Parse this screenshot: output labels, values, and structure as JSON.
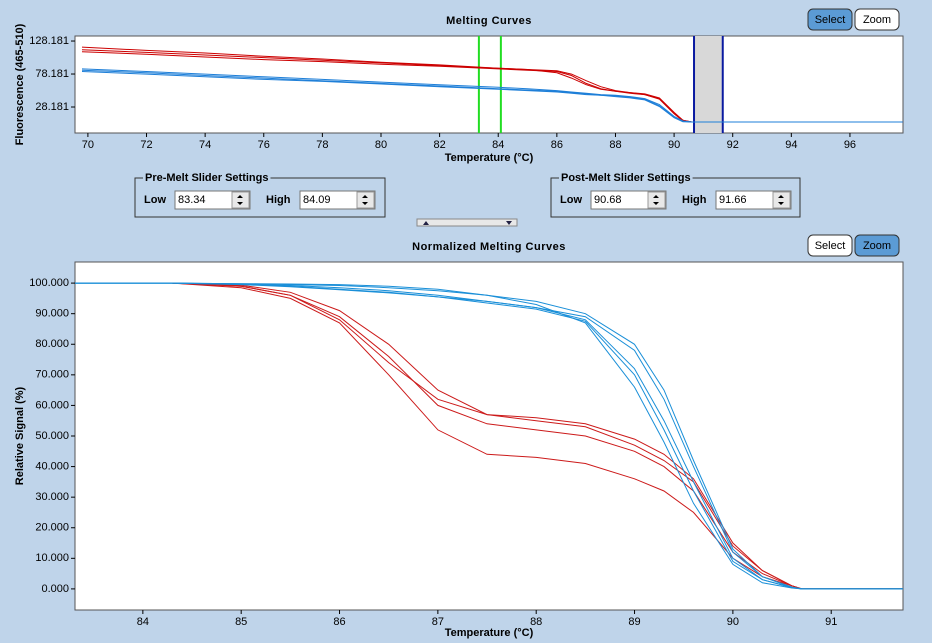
{
  "chart_data": [
    {
      "type": "line",
      "title": "Melting Curves",
      "ylabel": "Fluorescence (465-510)",
      "xlabel": "Temperature (°C)",
      "x": [
        69.8,
        72,
        74,
        76,
        78,
        80,
        82,
        84,
        85,
        86,
        86.5,
        87,
        87.5,
        88,
        88.5,
        89,
        89.5,
        90,
        90.3,
        90.6,
        92,
        94,
        96,
        97.8
      ],
      "series": [
        {
          "color": "#cc0000",
          "values": [
            119,
            114,
            110,
            105,
            101,
            96,
            92,
            87,
            85,
            80,
            72,
            62,
            55,
            52,
            50,
            48,
            42,
            20,
            8,
            5.5,
            5.5,
            5.5,
            5.5,
            5.5
          ]
        },
        {
          "color": "#cc0000",
          "values": [
            115,
            111,
            107,
            103,
            99,
            95,
            91,
            87,
            85,
            83,
            78,
            68,
            59,
            53,
            50,
            47,
            40,
            18,
            7,
            5.5,
            5.5,
            5.5,
            5.5,
            5.5
          ]
        },
        {
          "color": "#cc0000",
          "values": [
            112,
            108,
            104,
            100,
            97,
            93,
            90,
            86,
            84,
            82,
            76,
            64,
            56,
            52,
            49,
            47,
            41,
            19,
            8,
            5.5,
            5.5,
            5.5,
            5.5,
            5.5
          ]
        },
        {
          "color": "#1e7fd8",
          "values": [
            86,
            82,
            78,
            74,
            70,
            66,
            62,
            58,
            56,
            53,
            51,
            49,
            47,
            46,
            44,
            41,
            32,
            14,
            7,
            5.5,
            5.5,
            5.5,
            5.5,
            5.5
          ]
        },
        {
          "color": "#1e7fd8",
          "values": [
            84,
            80,
            76,
            72,
            68,
            64,
            60,
            56,
            54,
            52,
            50,
            48,
            46,
            45,
            43,
            40,
            30,
            13,
            6.5,
            5.5,
            5.5,
            5.5,
            5.5,
            5.5
          ]
        },
        {
          "color": "#1e7fd8",
          "values": [
            82,
            78,
            74,
            70,
            67,
            63,
            59,
            55,
            53,
            51,
            49,
            47,
            46,
            44,
            42,
            39,
            29,
            12,
            6,
            5.5,
            5.5,
            5.5,
            5.5,
            5.5
          ]
        }
      ],
      "xlim": [
        69.56,
        97.81
      ],
      "xticks": [
        70,
        72,
        74,
        76,
        78,
        80,
        82,
        84,
        86,
        88,
        90,
        92,
        94,
        96
      ],
      "ylim": [
        -11.2,
        135.8
      ],
      "yticks": [
        28.181,
        78.181,
        128.181
      ],
      "buttons": [
        "Select",
        "Zoom"
      ],
      "active_button": 0
    },
    {
      "type": "line",
      "title": "Normalized Melting Curves",
      "ylabel": "Relative Signal (%)",
      "xlabel": "Temperature (°C)",
      "x": [
        83.31,
        84,
        84.3,
        85,
        85.5,
        86,
        86.5,
        87,
        87.5,
        88,
        88.5,
        89,
        89.3,
        89.6,
        90,
        90.3,
        90.6,
        90.7,
        91.73
      ],
      "series": [
        {
          "color": "#cc1a1a",
          "values": [
            null,
            null,
            100,
            99,
            96,
            88,
            74,
            62,
            57,
            55,
            53,
            47,
            42,
            35,
            14,
            6,
            1,
            0,
            0
          ]
        },
        {
          "color": "#cc1a1a",
          "values": [
            null,
            null,
            100,
            98.5,
            95,
            87,
            70,
            52,
            44,
            43,
            41,
            36,
            32,
            25,
            10,
            4,
            1,
            0,
            0
          ]
        },
        {
          "color": "#cc1a1a",
          "values": [
            null,
            null,
            100,
            99,
            96,
            89,
            76,
            60,
            54,
            52,
            50,
            45,
            40,
            32,
            12,
            5,
            1,
            0,
            0
          ]
        },
        {
          "color": "#cc1a1a",
          "values": [
            null,
            null,
            100,
            99.3,
            97,
            91,
            80,
            65,
            57,
            56,
            54,
            49,
            44,
            36,
            15,
            6,
            1,
            0,
            0
          ]
        },
        {
          "color": "#1a8fd8",
          "values": [
            100,
            100,
            100,
            99.7,
            99.2,
            98.5,
            97.5,
            96,
            94,
            92,
            88,
            72,
            55,
            35,
            10,
            3,
            0.5,
            0,
            0
          ]
        },
        {
          "color": "#1a8fd8",
          "values": [
            100,
            100,
            100,
            99.8,
            99.7,
            99.5,
            99,
            98,
            96,
            93,
            87,
            66,
            48,
            28,
            8,
            2,
            0.3,
            0,
            0
          ]
        },
        {
          "color": "#1a8fd8",
          "values": [
            100,
            100,
            100,
            99.6,
            99,
            98,
            97,
            95.5,
            94,
            92,
            89,
            78,
            62,
            40,
            12,
            4,
            0.5,
            0,
            0
          ]
        },
        {
          "color": "#1a8fd8",
          "values": [
            100,
            100,
            100,
            99.8,
            99.5,
            99.2,
            98.5,
            97.5,
            96,
            94,
            90,
            80,
            65,
            42,
            13,
            4,
            0.6,
            0,
            0
          ]
        },
        {
          "color": "#1a8fd8",
          "values": [
            100,
            100,
            100,
            99.5,
            98.8,
            97.8,
            96.8,
            95.5,
            93.5,
            91.5,
            87.5,
            70,
            52,
            32,
            9,
            3,
            0.4,
            0,
            0
          ]
        }
      ],
      "xlim": [
        83.31,
        91.73
      ],
      "xticks": [
        84,
        85,
        86,
        87,
        88,
        89,
        90,
        91
      ],
      "ylim": [
        -6.9,
        106.9
      ],
      "yticks": [
        {
          "value": 0,
          "label": "0.000"
        },
        {
          "value": 10,
          "label": "10.000"
        },
        {
          "value": 20,
          "label": "20.000"
        },
        {
          "value": 30,
          "label": "30.000"
        },
        {
          "value": 40,
          "label": "40.000"
        },
        {
          "value": 50,
          "label": "50.000"
        },
        {
          "value": 60,
          "label": "60.000"
        },
        {
          "value": 70,
          "label": "70.000"
        },
        {
          "value": 80,
          "label": "80.000"
        },
        {
          "value": 90,
          "label": "90.000"
        },
        {
          "value": 100,
          "label": "100.000"
        }
      ],
      "buttons": [
        "Select",
        "Zoom"
      ],
      "active_button": 1
    }
  ],
  "pre_melt": {
    "title": "Pre-Melt Slider Settings",
    "low_label": "Low",
    "low": 83.34,
    "high_label": "High",
    "high": 84.09,
    "color": "#22dd22"
  },
  "post_melt": {
    "title": "Post-Melt Slider Settings",
    "low_label": "Low",
    "low": 90.68,
    "high_label": "High",
    "high": 91.66,
    "color": "#0a1aa0"
  }
}
